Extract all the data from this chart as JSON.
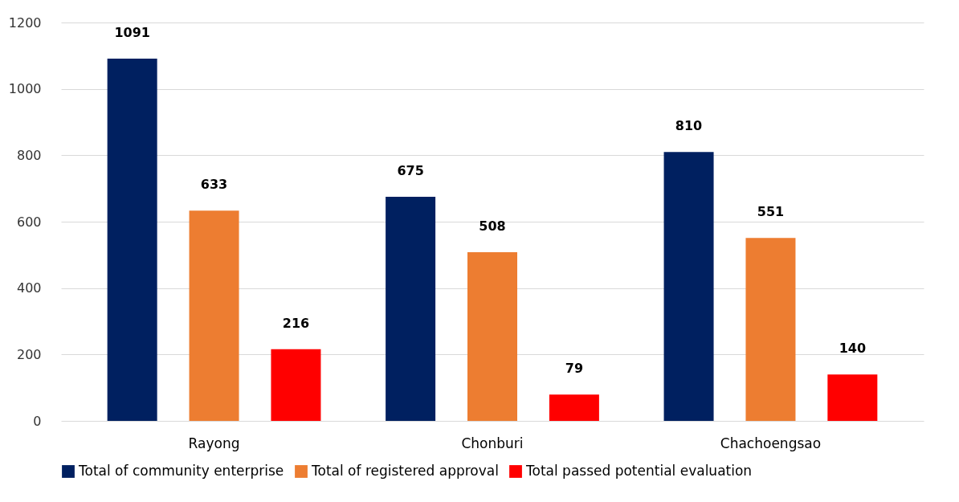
{
  "chart_data": {
    "type": "bar",
    "categories": [
      "Rayong",
      "Chonburi",
      "Chachoengsao"
    ],
    "series": [
      {
        "name": "Total of community enterprise",
        "color": "#002060",
        "values": [
          1091,
          675,
          810
        ]
      },
      {
        "name": "Total of registered approval",
        "color": "#ed7d31",
        "values": [
          633,
          508,
          551
        ]
      },
      {
        "name": "Total passed potential evaluation",
        "color": "#ff0000",
        "values": [
          216,
          79,
          140
        ]
      }
    ],
    "ylim": [
      0,
      1200
    ],
    "yticks": [
      0,
      200,
      400,
      600,
      800,
      1000,
      1200
    ],
    "grid": "y",
    "legend": "bottom",
    "data_labels": true
  }
}
